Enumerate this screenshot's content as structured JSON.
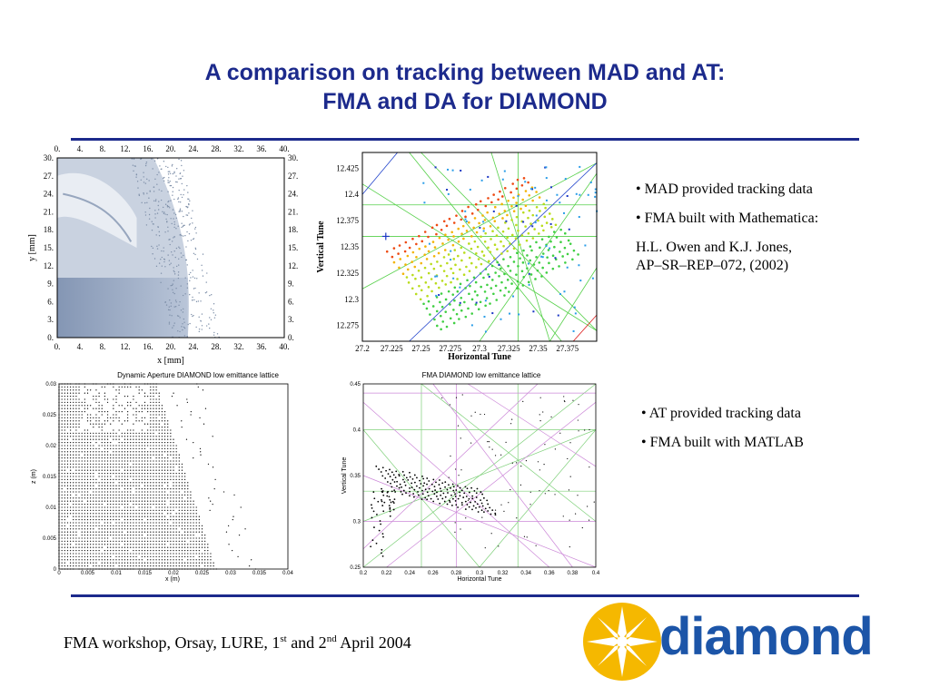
{
  "title": {
    "line1": "A comparison on tracking between MAD and AT:",
    "line2": "FMA and DA for DIAMOND"
  },
  "bullets_mad": {
    "b1": "• MAD provided tracking data",
    "b2": "• FMA built with Mathematica:",
    "b3a": "H.L. Owen and K.J. Jones,",
    "b3b": "AP–SR–REP–072, (2002)"
  },
  "bullets_at": {
    "b1": "• AT provided tracking data",
    "b2": "• FMA built with MATLAB"
  },
  "footer": {
    "pre": "FMA workshop, Orsay, LURE, 1",
    "sup1": "st",
    "mid": " and 2",
    "sup2": "nd",
    "post": " April 2004"
  },
  "logo": {
    "text": "diamond",
    "star_color": "#f5b800",
    "text_color": "#1c55a8"
  },
  "colors": {
    "title": "#1c2a8c",
    "rule": "#1c2a8c"
  },
  "chart_data": [
    {
      "type": "heatmap",
      "title": "",
      "xlabel": "x [mm]",
      "ylabel": "y [mm]",
      "xlim": [
        0,
        40
      ],
      "ylim": [
        0,
        30
      ],
      "xticks": [
        "0.",
        "4.",
        "8.",
        "12.",
        "16.",
        "20.",
        "24.",
        "28.",
        "32.",
        "36.",
        "40."
      ],
      "yticks": [
        "0.",
        "3.",
        "6.",
        "9.",
        "12.",
        "15.",
        "18.",
        "21.",
        "24.",
        "27.",
        "30."
      ],
      "grid": false
    },
    {
      "type": "scatter",
      "title": "",
      "xlabel": "Horizontal Tune",
      "ylabel": "Vertical Tune",
      "xlim": [
        27.2,
        27.4
      ],
      "ylim": [
        12.26,
        12.44
      ],
      "xticks": [
        "27.2",
        "27.225",
        "27.25",
        "27.275",
        "27.3",
        "27.325",
        "27.35",
        "27.375"
      ],
      "yticks": [
        "12.275",
        "12.3",
        "12.325",
        "12.35",
        "12.375",
        "12.4",
        "12.425"
      ],
      "marker": {
        "x": 27.22,
        "y": 12.36
      }
    },
    {
      "type": "scatter",
      "title": "Dynamic Aperture DIAMOND low emittance lattice",
      "xlabel": "x (m)",
      "ylabel": "z (m)",
      "xlim": [
        0,
        0.04
      ],
      "ylim": [
        0,
        0.03
      ],
      "xticks": [
        "0",
        "0.005",
        "0.01",
        "0.015",
        "0.02",
        "0.025",
        "0.03",
        "0.035",
        "0.04"
      ],
      "yticks": [
        "0",
        "0.005",
        "0.01",
        "0.015",
        "0.02",
        "0.025",
        "0.03"
      ]
    },
    {
      "type": "scatter",
      "title": "FMA DIAMOND low emittance lattice",
      "xlabel": "Horizontal Tune",
      "ylabel": "Vertical Tune",
      "xlim": [
        0.2,
        0.4
      ],
      "ylim": [
        0.25,
        0.45
      ],
      "xticks": [
        "0.2",
        "0.22",
        "0.24",
        "0.26",
        "0.28",
        "0.3",
        "0.32",
        "0.34",
        "0.36",
        "0.38",
        "0.4"
      ],
      "yticks": [
        "0.25",
        "0.3",
        "0.35",
        "0.4",
        "0.45"
      ]
    }
  ]
}
